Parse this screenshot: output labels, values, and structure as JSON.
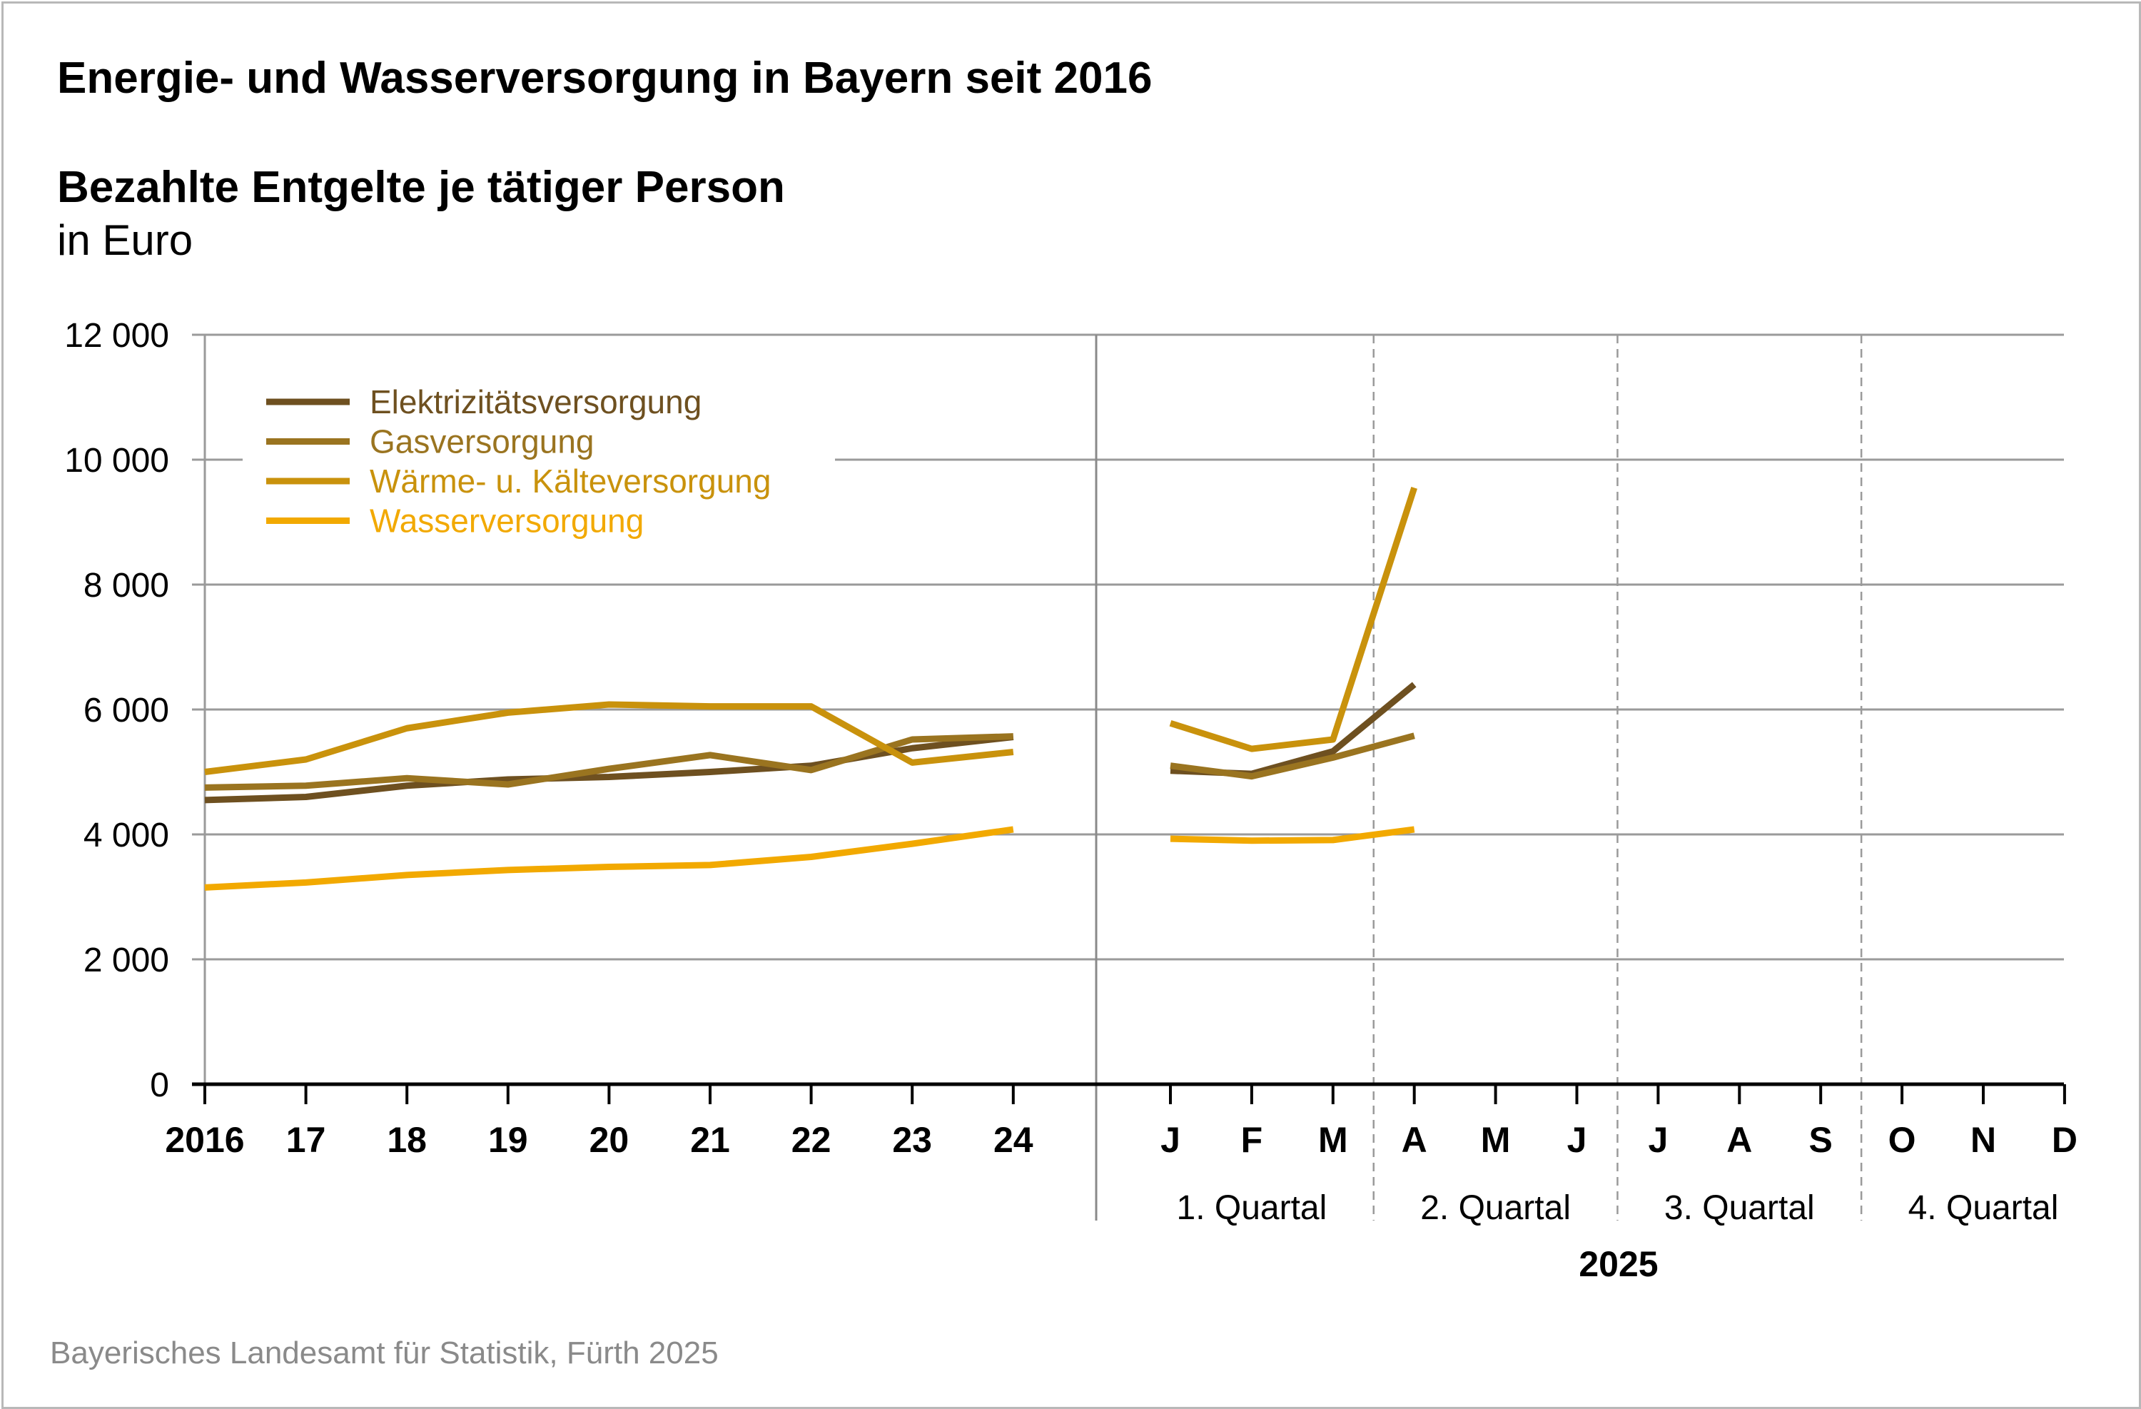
{
  "title": "Energie- und Wasserversorgung in Bayern seit 2016",
  "subtitle": "Bezahlte Entgelte je tätiger Person",
  "unit": "in Euro",
  "source": "Bayerisches Landesamt für Statistik, Fürth 2025",
  "year_label": "2025",
  "colors": {
    "Elektrizitätsversorgung": "#6e5020",
    "Gasversorgung": "#9a7420",
    "Wärme- u. Kälteversorgung": "#c9920c",
    "Wasserversorgung": "#f2a900"
  },
  "chart_data": {
    "type": "line",
    "ylim": [
      0,
      12000
    ],
    "yticks": [
      0,
      2000,
      4000,
      6000,
      8000,
      10000,
      12000
    ],
    "ytick_labels": [
      "0",
      "2 000",
      "4 000",
      "6 000",
      "8 000",
      "10 000",
      "12 000"
    ],
    "grid": true,
    "legend_position": "top-left",
    "annual": {
      "categories": [
        "2016",
        "17",
        "18",
        "19",
        "20",
        "21",
        "22",
        "23",
        "24"
      ]
    },
    "monthly": {
      "categories": [
        "J",
        "F",
        "M",
        "A",
        "M",
        "J",
        "J",
        "A",
        "S",
        "O",
        "N",
        "D"
      ],
      "quarters": [
        "1. Quartal",
        "2. Quartal",
        "3. Quartal",
        "4. Quartal"
      ]
    },
    "series": [
      {
        "name": "Elektrizitätsversorgung",
        "annual": [
          4550,
          4600,
          4780,
          4880,
          4920,
          5000,
          5100,
          5380,
          5560
        ],
        "monthly": [
          5020,
          4970,
          5330,
          6400
        ]
      },
      {
        "name": "Gasversorgung",
        "annual": [
          4750,
          4780,
          4900,
          4800,
          5050,
          5270,
          5030,
          5520,
          5570
        ],
        "monthly": [
          5100,
          4930,
          5230,
          5580
        ]
      },
      {
        "name": "Wärme- u. Kälteversorgung",
        "annual": [
          5000,
          5200,
          5700,
          5950,
          6080,
          6050,
          6050,
          5150,
          5320
        ],
        "monthly": [
          5780,
          5370,
          5520,
          9550
        ]
      },
      {
        "name": "Wasserversorgung",
        "annual": [
          3150,
          3230,
          3350,
          3430,
          3480,
          3510,
          3640,
          3850,
          4080
        ],
        "monthly": [
          3930,
          3900,
          3910,
          4080
        ]
      }
    ]
  }
}
